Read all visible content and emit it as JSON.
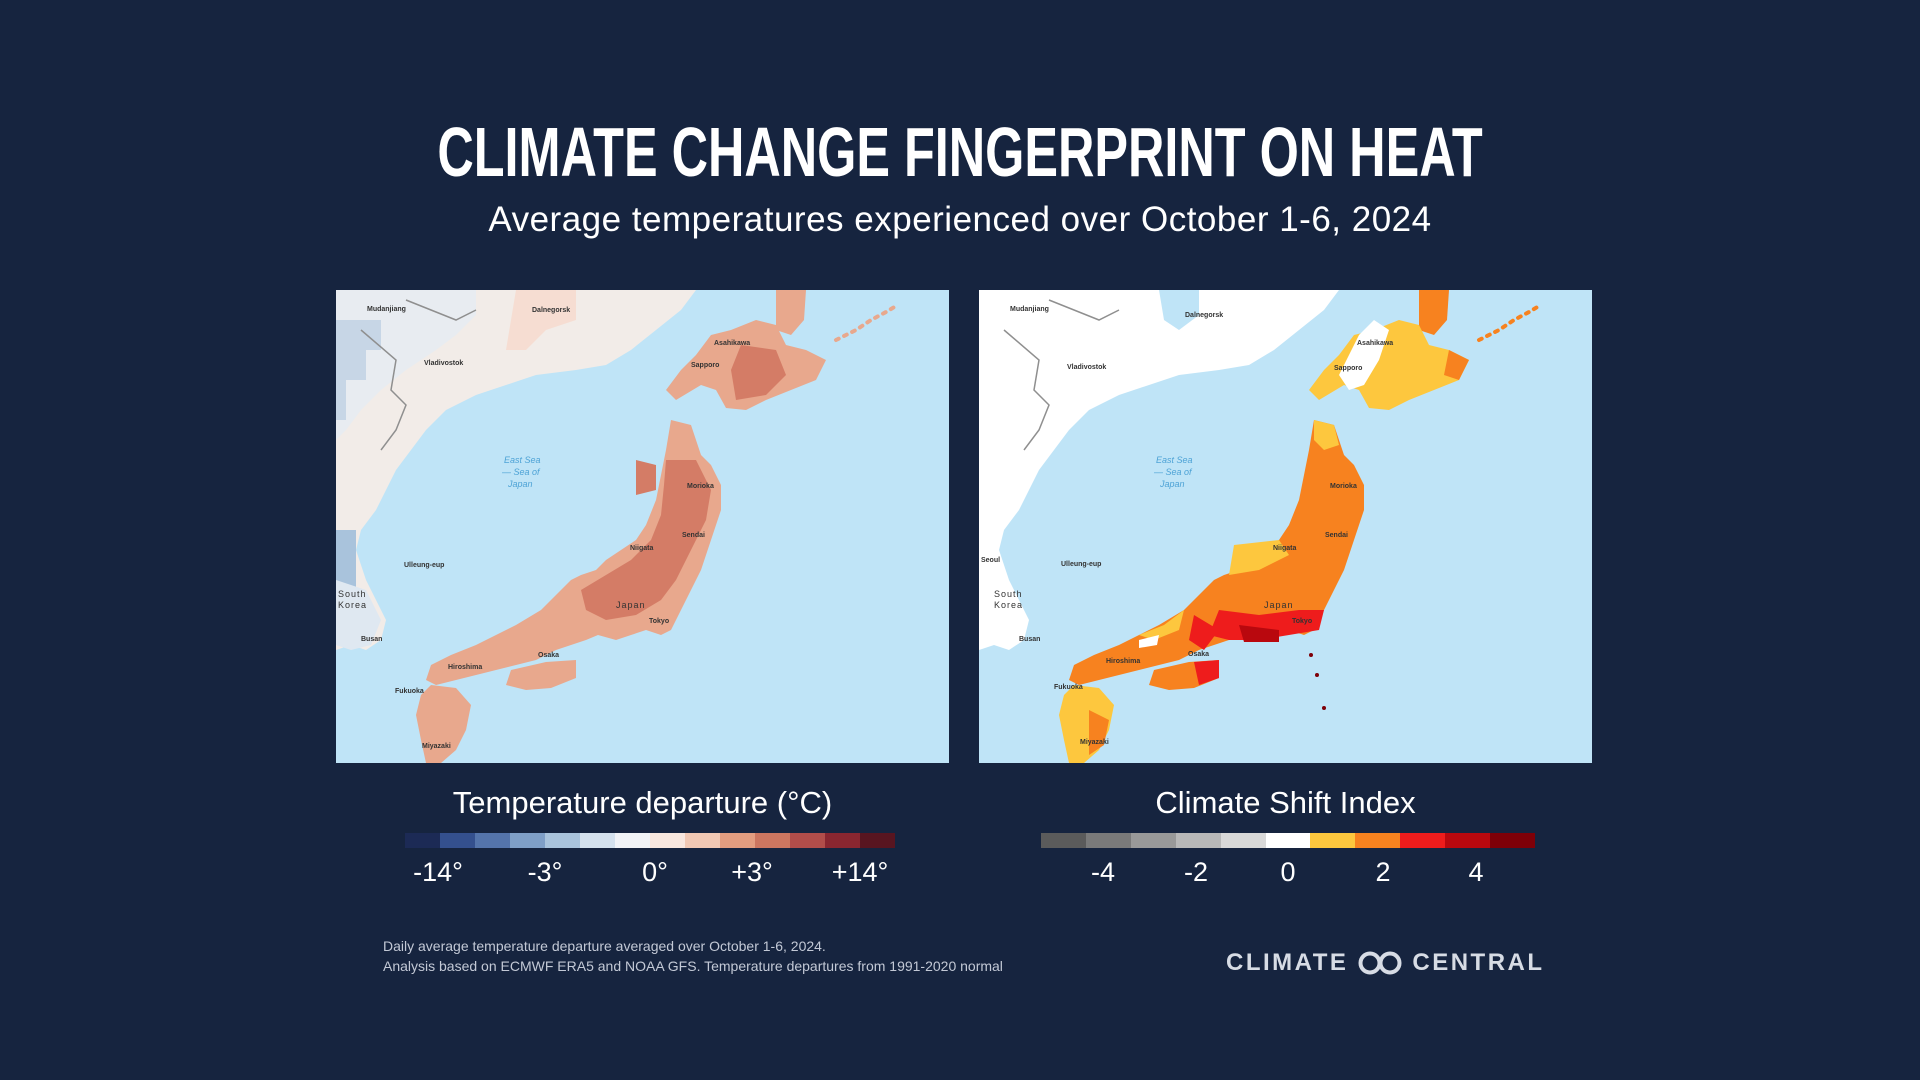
{
  "header": {
    "title": "Climate Change Fingerprint on Heat",
    "subtitle": "Average temperatures experienced over October 1-6, 2024"
  },
  "maps": {
    "left": {
      "sea_label": [
        "East Sea",
        "— Sea of",
        "Japan"
      ],
      "country_labels": [
        "Japan",
        "South",
        "Korea"
      ],
      "cities": [
        "Mudanjiang",
        "Dalnegorsk",
        "Asahikawa",
        "Sapporo",
        "Vladivostok",
        "Morioka",
        "Sendai",
        "Niigata",
        "Tokyo",
        "Osaka",
        "Hiroshima",
        "Fukuoka",
        "Miyazaki",
        "Busan",
        "Ulleung-eup"
      ]
    },
    "right": {
      "sea_label": [
        "East Sea",
        "— Sea of",
        "Japan"
      ],
      "country_labels": [
        "Japan",
        "South",
        "Korea",
        "Seoul"
      ],
      "cities": [
        "Mudanjiang",
        "Dalnegorsk",
        "Asahikawa",
        "Sapporo",
        "Vladivostok",
        "Morioka",
        "Sendai",
        "Niigata",
        "Tokyo",
        "Osaka",
        "Hiroshima",
        "Fukuoka",
        "Miyazaki",
        "Busan",
        "Ulleung-eup"
      ]
    }
  },
  "legend_left": {
    "title": "Temperature departure (°C)",
    "ticks": [
      "-14°",
      "-3°",
      "0°",
      "+3°",
      "+14°"
    ],
    "colors": [
      "#1c2a55",
      "#34508e",
      "#5474ab",
      "#7f9fc7",
      "#a9c3dc",
      "#d4e1ee",
      "#f1f3f7",
      "#f8e7df",
      "#f1c8b4",
      "#e39d80",
      "#cc7660",
      "#b24d4a",
      "#8a2630",
      "#581520"
    ]
  },
  "legend_right": {
    "title": "Climate Shift Index",
    "ticks": [
      "-4",
      "-2",
      "0",
      "2",
      "4"
    ],
    "colors": [
      "#5b5b5b",
      "#7a7a7a",
      "#999999",
      "#b8b8b8",
      "#d8d8d8",
      "#ffffff",
      "#fdc73e",
      "#f7821f",
      "#ee1c1c",
      "#b9080e",
      "#7e0008"
    ]
  },
  "footnote": {
    "line1": "Daily average temperature departure averaged over October 1-6, 2024.",
    "line2": "Analysis based on ECMWF ERA5 and NOAA GFS. Temperature departures from 1991-2020 normal"
  },
  "brand": {
    "left": "CLIMATE",
    "right": "CENTRAL"
  }
}
